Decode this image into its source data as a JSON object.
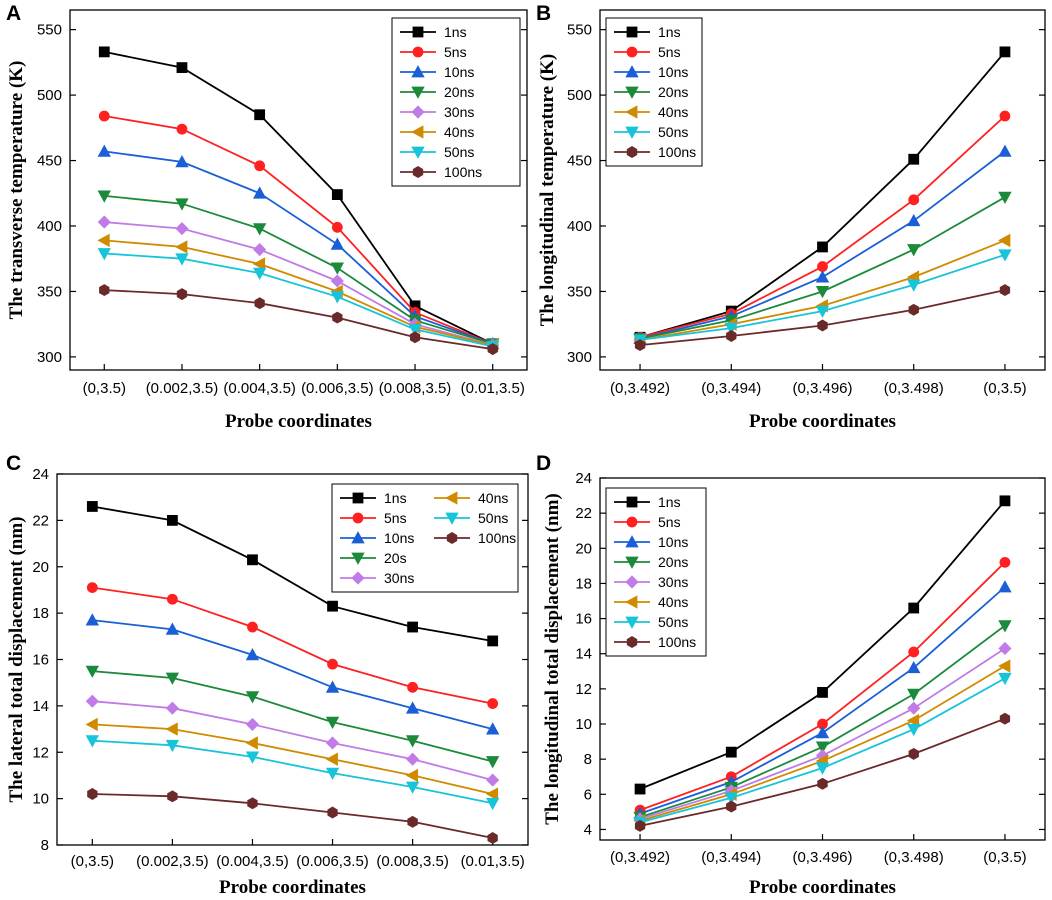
{
  "colors": {
    "1ns": "#000000",
    "5ns": "#ff2020",
    "10ns": "#1a5fd6",
    "20ns": "#1b8a3a",
    "30ns": "#c07be6",
    "40ns": "#d08a00",
    "50ns": "#17c4d9",
    "100ns": "#6b2a2a"
  },
  "chart_data": [
    {
      "panel": "A",
      "type": "line",
      "title": "",
      "xlabel": "Probe coordinates",
      "ylabel": "The transverse temperature (K)",
      "categories": [
        "(0,3.5)",
        "(0.002,3.5)",
        "(0.004,3.5)",
        "(0.006,3.5)",
        "(0.008,3.5)",
        "(0.01,3.5)"
      ],
      "ylim": [
        290,
        565
      ],
      "yticks": [
        300,
        350,
        400,
        450,
        500,
        550
      ],
      "legend_position": "top-right",
      "series": [
        {
          "name": "1ns",
          "marker": "square",
          "values": [
            533,
            521,
            485,
            424,
            339,
            310
          ]
        },
        {
          "name": "5ns",
          "marker": "circle",
          "values": [
            484,
            474,
            446,
            399,
            334,
            310
          ]
        },
        {
          "name": "10ns",
          "marker": "triangle-up",
          "values": [
            457,
            449,
            425,
            386,
            331,
            310
          ]
        },
        {
          "name": "20ns",
          "marker": "triangle-down",
          "values": [
            423,
            417,
            398,
            368,
            328,
            310
          ]
        },
        {
          "name": "30ns",
          "marker": "diamond",
          "values": [
            403,
            398,
            382,
            358,
            325,
            309
          ]
        },
        {
          "name": "40ns",
          "marker": "triangle-left",
          "values": [
            389,
            384,
            371,
            350,
            323,
            309
          ]
        },
        {
          "name": "50ns",
          "marker": "triangle-down",
          "values": [
            379,
            375,
            364,
            346,
            321,
            308
          ]
        },
        {
          "name": "100ns",
          "marker": "hexagon",
          "values": [
            351,
            348,
            341,
            330,
            315,
            306
          ]
        }
      ]
    },
    {
      "panel": "B",
      "type": "line",
      "title": "",
      "xlabel": "Probe coordinates",
      "ylabel": "The longitudinal temperature (K)",
      "categories": [
        "(0,3.492)",
        "(0,3.494)",
        "(0,3.496)",
        "(0,3.498)",
        "(0,3.5)"
      ],
      "ylim": [
        290,
        565
      ],
      "yticks": [
        300,
        350,
        400,
        450,
        500,
        550
      ],
      "legend_position": "top-left",
      "series": [
        {
          "name": "1ns",
          "marker": "square",
          "values": [
            315,
            335,
            384,
            451,
            533
          ]
        },
        {
          "name": "5ns",
          "marker": "circle",
          "values": [
            315,
            333,
            369,
            420,
            484
          ]
        },
        {
          "name": "10ns",
          "marker": "triangle-up",
          "values": [
            314,
            331,
            361,
            404,
            457
          ]
        },
        {
          "name": "20ns",
          "marker": "triangle-down",
          "values": [
            314,
            328,
            350,
            382,
            422
          ]
        },
        {
          "name": "40ns",
          "marker": "triangle-left",
          "values": [
            313,
            325,
            339,
            361,
            389
          ]
        },
        {
          "name": "50ns",
          "marker": "triangle-down",
          "values": [
            313,
            322,
            335,
            355,
            378
          ]
        },
        {
          "name": "100ns",
          "marker": "hexagon",
          "values": [
            309,
            316,
            324,
            336,
            351
          ]
        }
      ]
    },
    {
      "panel": "C",
      "type": "line",
      "title": "",
      "xlabel": "Probe coordinates",
      "ylabel": "The lateral total displacement (nm)",
      "categories": [
        "(0,3.5)",
        "(0.002,3.5)",
        "(0.004,3.5)",
        "(0.006,3.5)",
        "(0.008,3.5)",
        "(0.01,3.5)"
      ],
      "ylim": [
        8,
        24
      ],
      "yticks": [
        8,
        10,
        12,
        14,
        16,
        18,
        20,
        22,
        24
      ],
      "legend_position": "top-right",
      "series": [
        {
          "name": "1ns",
          "marker": "square",
          "values": [
            22.6,
            22.0,
            20.3,
            18.3,
            17.4,
            16.8
          ]
        },
        {
          "name": "5ns",
          "marker": "circle",
          "values": [
            19.1,
            18.6,
            17.4,
            15.8,
            14.8,
            14.1
          ]
        },
        {
          "name": "10ns",
          "marker": "triangle-up",
          "values": [
            17.7,
            17.3,
            16.2,
            14.8,
            13.9,
            13.0
          ]
        },
        {
          "name": "20s",
          "marker": "triangle-down",
          "values": [
            15.5,
            15.2,
            14.4,
            13.3,
            12.5,
            11.6
          ]
        },
        {
          "name": "30ns",
          "marker": "diamond",
          "values": [
            14.2,
            13.9,
            13.2,
            12.4,
            11.7,
            10.8
          ]
        },
        {
          "name": "40ns",
          "marker": "triangle-left",
          "values": [
            13.2,
            13.0,
            12.4,
            11.7,
            11.0,
            10.2
          ]
        },
        {
          "name": "50ns",
          "marker": "triangle-down",
          "values": [
            12.5,
            12.3,
            11.8,
            11.1,
            10.5,
            9.8
          ]
        },
        {
          "name": "100ns",
          "marker": "hexagon",
          "values": [
            10.2,
            10.1,
            9.8,
            9.4,
            9.0,
            8.3
          ]
        }
      ]
    },
    {
      "panel": "D",
      "type": "line",
      "title": "",
      "xlabel": "Probe coordinates",
      "ylabel": "The  longitudinal total displacement (nm)",
      "categories": [
        "(0,3.492)",
        "(0,3.494)",
        "(0,3.496)",
        "(0,3.498)",
        "(0,3.5)"
      ],
      "ylim": [
        3.4,
        24
      ],
      "yticks": [
        4,
        6,
        8,
        10,
        12,
        14,
        16,
        18,
        20,
        22,
        24
      ],
      "legend_position": "top-left",
      "series": [
        {
          "name": "1ns",
          "marker": "square",
          "values": [
            6.3,
            8.4,
            11.8,
            16.6,
            22.7
          ]
        },
        {
          "name": "5ns",
          "marker": "circle",
          "values": [
            5.1,
            7.0,
            10.0,
            14.1,
            19.2
          ]
        },
        {
          "name": "10ns",
          "marker": "triangle-up",
          "values": [
            4.9,
            6.7,
            9.5,
            13.2,
            17.8
          ]
        },
        {
          "name": "20ns",
          "marker": "triangle-down",
          "values": [
            4.7,
            6.4,
            8.7,
            11.7,
            15.6
          ]
        },
        {
          "name": "30ns",
          "marker": "diamond",
          "values": [
            4.6,
            6.2,
            8.2,
            10.9,
            14.3
          ]
        },
        {
          "name": "40ns",
          "marker": "triangle-left",
          "values": [
            4.5,
            6.0,
            7.9,
            10.2,
            13.3
          ]
        },
        {
          "name": "50ns",
          "marker": "triangle-down",
          "values": [
            4.4,
            5.8,
            7.5,
            9.7,
            12.6
          ]
        },
        {
          "name": "100ns",
          "marker": "hexagon",
          "values": [
            4.2,
            5.3,
            6.6,
            8.3,
            10.3
          ]
        }
      ]
    }
  ]
}
